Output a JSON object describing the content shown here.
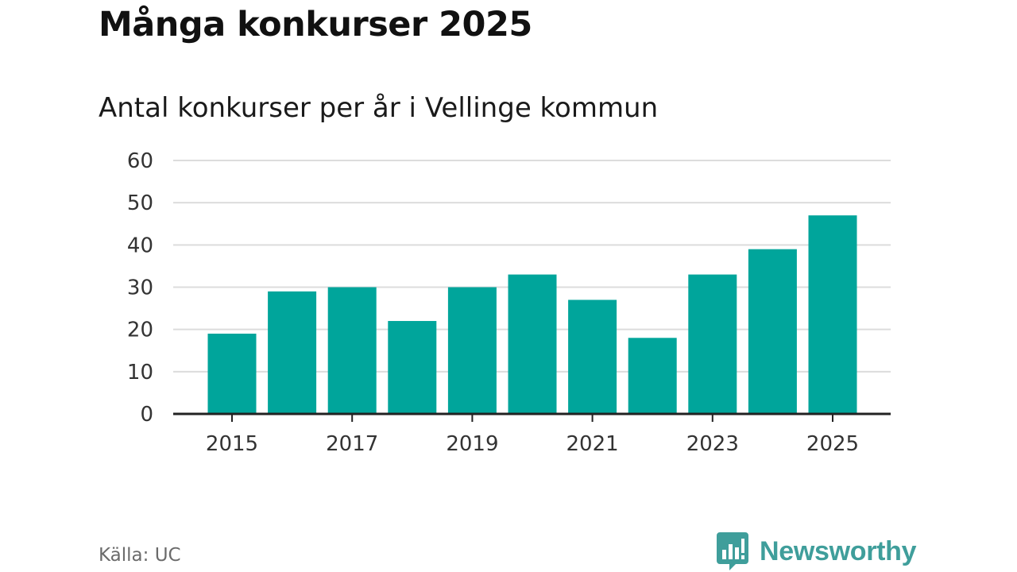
{
  "header": {
    "title": "Många konkurser 2025",
    "subtitle": "Antal konkurser per år i Vellinge kommun"
  },
  "footer": {
    "source": "Källa: UC",
    "brand": "Newsworthy",
    "brand_icon": "newsworthy-logo-icon"
  },
  "colors": {
    "bar": "#00a59b",
    "grid": "#dcdcdc",
    "axis": "#222222",
    "tick_text": "#333333",
    "brand": "#3f9e9b"
  },
  "chart_data": {
    "type": "bar",
    "title": "Många konkurser 2025",
    "subtitle": "Antal konkurser per år i Vellinge kommun",
    "xlabel": "",
    "ylabel": "",
    "categories": [
      "2015",
      "2016",
      "2017",
      "2018",
      "2019",
      "2020",
      "2021",
      "2022",
      "2023",
      "2024",
      "2025"
    ],
    "values": [
      19,
      29,
      30,
      22,
      30,
      33,
      27,
      18,
      33,
      39,
      47
    ],
    "x_tick_labels": [
      "2015",
      "2017",
      "2019",
      "2021",
      "2023",
      "2025"
    ],
    "y_ticks": [
      0,
      10,
      20,
      30,
      40,
      50,
      60
    ],
    "ylim": [
      0,
      60
    ],
    "grid": true,
    "legend": "none"
  }
}
